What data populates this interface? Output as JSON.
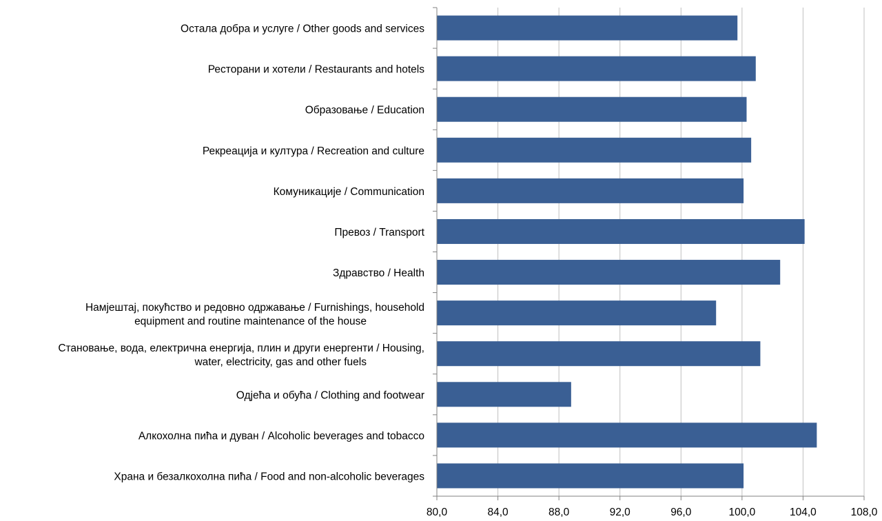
{
  "chart_data": {
    "type": "bar",
    "orientation": "horizontal",
    "title": "",
    "xlabel": "",
    "ylabel": "",
    "xlim": [
      80,
      108
    ],
    "x_ticks": [
      "80,0",
      "84,0",
      "88,0",
      "92,0",
      "96,0",
      "100,0",
      "104,0",
      "108,0"
    ],
    "grid": true,
    "bar_color": "#3A5F94",
    "grid_color": "#BFBFBF",
    "categories": [
      {
        "local": "Остала добра и услуге",
        "en": "Other goods and services",
        "value": 99.7
      },
      {
        "local": "Ресторани и хотели",
        "en": "Restaurants and hotels",
        "value": 100.9
      },
      {
        "local": "Образовање",
        "en": "Education",
        "value": 100.3
      },
      {
        "local": "Рекреација и култура",
        "en": "Recreation and culture",
        "value": 100.6
      },
      {
        "local": "Комуникације",
        "en": "Communication",
        "value": 100.1
      },
      {
        "local": "Превоз",
        "en": "Transport",
        "value": 104.1
      },
      {
        "local": "Здравство",
        "en": "Health",
        "value": 102.5
      },
      {
        "local": "Намјештај, покућство и редовно одржавање",
        "en": "Furnishings, household",
        "en2": "equipment and routine maintenance of the house",
        "value": 98.3
      },
      {
        "local": "Становање, вода, електрична енергија, плин и други енергенти",
        "en": "Housing,",
        "en2": "water, electricity, gas and other fuels",
        "value": 101.2
      },
      {
        "local": "Одјећа и обућа",
        "en": "Clothing and footwear",
        "value": 88.8
      },
      {
        "local": "Алкохолна пића и дуван",
        "en": "Alcoholic beverages and tobacco",
        "value": 104.9
      },
      {
        "local": "Храна и безалкохолна пића",
        "en": "Food and non-alcoholic beverages",
        "value": 100.1
      }
    ]
  }
}
